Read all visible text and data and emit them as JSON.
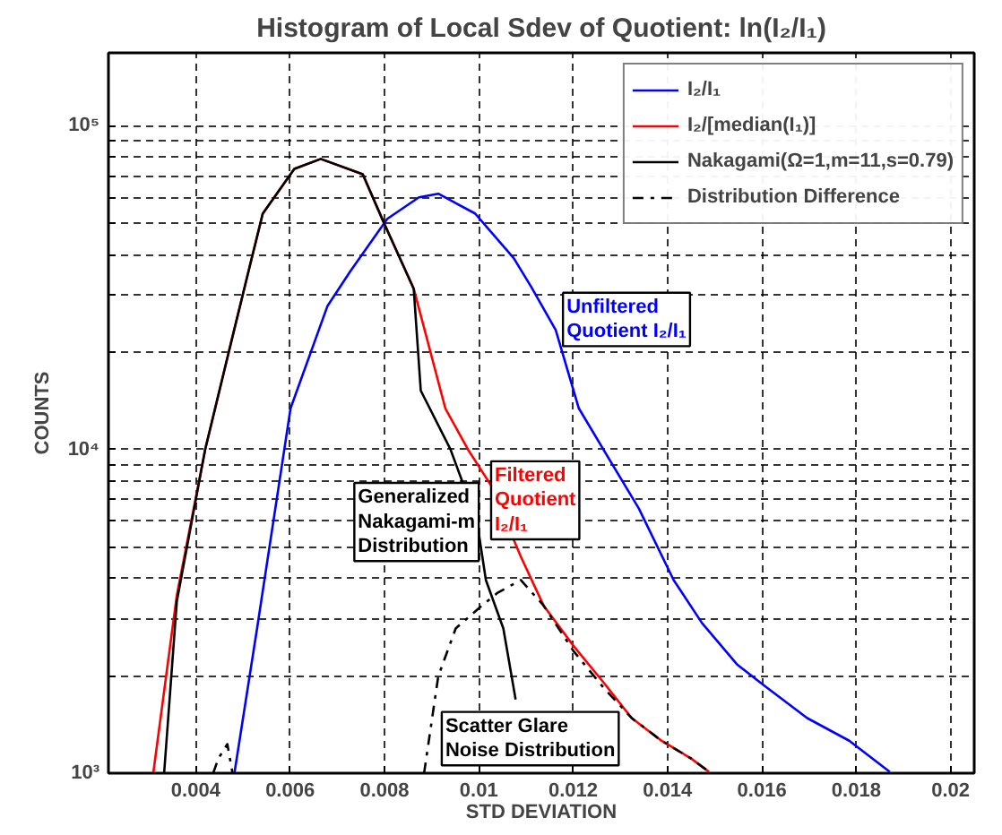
{
  "chart_data": {
    "type": "line",
    "title": "Histogram of Local Sdev of Quotient: ln(I₂/I₁)",
    "xlabel": "STD DEVIATION",
    "ylabel": "COUNTS",
    "log": "y",
    "grid": true,
    "legend": "top right",
    "xlim": [
      0.00215,
      0.0205
    ],
    "ylim": [
      1000,
      168000
    ],
    "xticks": [
      0.004,
      0.006,
      0.008,
      0.01,
      0.012,
      0.014,
      0.016,
      0.018,
      0.02
    ],
    "yticks": [
      {
        "value": 1000,
        "label": "10³"
      },
      {
        "value": 2000,
        "label": null
      },
      {
        "value": 3000,
        "label": null
      },
      {
        "value": 4000,
        "label": null
      },
      {
        "value": 5000,
        "label": null
      },
      {
        "value": 6000,
        "label": null
      },
      {
        "value": 7000,
        "label": null
      },
      {
        "value": 8000,
        "label": null
      },
      {
        "value": 9000,
        "label": null
      },
      {
        "value": 10000,
        "label": "10⁴"
      },
      {
        "value": 20000,
        "label": null
      },
      {
        "value": 30000,
        "label": null
      },
      {
        "value": 40000,
        "label": null
      },
      {
        "value": 50000,
        "label": null
      },
      {
        "value": 60000,
        "label": null
      },
      {
        "value": 70000,
        "label": null
      },
      {
        "value": 80000,
        "label": null
      },
      {
        "value": 90000,
        "label": null
      },
      {
        "value": 100000,
        "label": "10⁵"
      }
    ],
    "series": [
      {
        "name": "I₂/I₁",
        "color": "#0000ff",
        "line_style": "solid",
        "x": [
          0.00482,
          0.0053,
          0.00601,
          0.00679,
          0.00728,
          0.00806,
          0.00873,
          0.00914,
          0.00992,
          0.01074,
          0.01111,
          0.01163,
          0.01212,
          0.01264,
          0.01339,
          0.01413,
          0.01473,
          0.01547,
          0.0161,
          0.01696,
          0.01785,
          0.01871
        ],
        "values": [
          1000,
          2800,
          13400,
          27700,
          35600,
          51600,
          60100,
          61700,
          53600,
          39000,
          31800,
          23400,
          13400,
          10000,
          6580,
          3950,
          2910,
          2170,
          1840,
          1480,
          1260,
          1010
        ]
      },
      {
        "name": "I₂/[median(I₁)]",
        "color": "#ff0000",
        "line_style": "solid",
        "x": [
          0.0031,
          0.0036,
          0.0042,
          0.0047,
          0.00512,
          0.00542,
          0.00609,
          0.00665,
          0.00754,
          0.008,
          0.00862,
          0.00929,
          0.00977,
          0.01026,
          0.01089,
          0.01137,
          0.01201,
          0.01264,
          0.01324,
          0.01387,
          0.0145,
          0.01488
        ],
        "values": [
          1000,
          3550,
          10000,
          20000,
          35600,
          53500,
          73600,
          79000,
          70800,
          49700,
          31400,
          13400,
          10000,
          7740,
          4670,
          3300,
          2470,
          1910,
          1480,
          1260,
          1110,
          1010
        ]
      },
      {
        "name": "Nakagami(Ω=1,m=11,s=0.79)",
        "color": "#000000",
        "line_style": "solid",
        "x": [
          0.00333,
          0.0036,
          0.0042,
          0.0047,
          0.00512,
          0.00542,
          0.00609,
          0.00665,
          0.00754,
          0.008,
          0.00862,
          0.00877,
          0.0094,
          0.00996,
          0.01015,
          0.01052,
          0.01078
        ],
        "values": [
          1000,
          3400,
          10000,
          20000,
          35600,
          53500,
          73600,
          79000,
          70800,
          49700,
          31400,
          15200,
          10000,
          6010,
          3950,
          2800,
          1690
        ]
      },
      {
        "name": "Distribution Difference",
        "color": "#000000",
        "line_style": "dashdot",
        "x": [
          0.00437,
          0.00448,
          0.00467,
          0.00478,
          0.0068,
          0.00884,
          0.00914,
          0.00951,
          0.01003,
          0.0104,
          0.01089,
          0.01137,
          0.01201,
          0.01264,
          0.01324,
          0.01387,
          0.0145,
          0.01488
        ],
        "values": [
          1000,
          1110,
          1230,
          1000,
          null,
          1000,
          1990,
          2800,
          3260,
          3610,
          3950,
          3300,
          2380,
          1840,
          1480,
          1260,
          1110,
          1010
        ]
      }
    ],
    "annotations": [
      "Unfiltered\nQuotient I₂/I₁",
      "Filtered\nQuotient\nI₂/I₁",
      "Generalized\nNakagami-m\nDistribution",
      "Scatter Glare\nNoise Distribution"
    ]
  }
}
